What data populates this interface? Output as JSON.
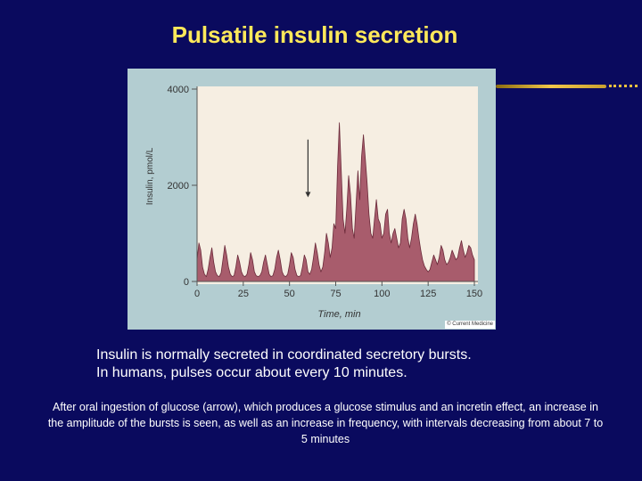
{
  "slide": {
    "title": "Pulsatile insulin secretion",
    "bullets": [
      "Insulin is normally secreted in coordinated secretory bursts.",
      "In humans, pulses occur about every 10 minutes."
    ],
    "note": "After oral ingestion of glucose (arrow), which produces a glucose stimulus and an incretin effect, an increase in the amplitude of the bursts is seen, as well as an increase in frequency, with intervals decreasing from about 7 to 5 minutes",
    "copyright": "© Current Medicine"
  },
  "colors": {
    "background": "#0a0a5e",
    "title": "#ffe95a",
    "plot_area": "#f6eee2",
    "figure_frame": "#b3cdd1",
    "series_fill": "#a85c6c",
    "series_line": "#6b2a3a"
  },
  "chart_data": {
    "type": "area",
    "title": "",
    "xlabel": "Time, min",
    "ylabel": "Insulin, pmol/L",
    "xlim": [
      0,
      150
    ],
    "ylim": [
      0,
      4000
    ],
    "x_ticks": [
      0,
      25,
      50,
      75,
      100,
      125,
      150
    ],
    "y_ticks": [
      0,
      2000,
      4000
    ],
    "grid": false,
    "legend": "none",
    "annotation": {
      "type": "arrow",
      "x": 60,
      "y_from": 2950,
      "y_to": 1750
    },
    "x": [
      0,
      1,
      2,
      3,
      4,
      5,
      6,
      7,
      8,
      9,
      10,
      11,
      12,
      13,
      14,
      15,
      16,
      17,
      18,
      19,
      20,
      21,
      22,
      23,
      24,
      25,
      26,
      27,
      28,
      29,
      30,
      31,
      32,
      33,
      34,
      35,
      36,
      37,
      38,
      39,
      40,
      41,
      42,
      43,
      44,
      45,
      46,
      47,
      48,
      49,
      50,
      51,
      52,
      53,
      54,
      55,
      56,
      57,
      58,
      59,
      60,
      61,
      62,
      63,
      64,
      65,
      66,
      67,
      68,
      69,
      70,
      71,
      72,
      73,
      74,
      75,
      76,
      77,
      78,
      79,
      80,
      81,
      82,
      83,
      84,
      85,
      86,
      87,
      88,
      89,
      90,
      91,
      92,
      93,
      94,
      95,
      96,
      97,
      98,
      99,
      100,
      101,
      102,
      103,
      104,
      105,
      106,
      107,
      108,
      109,
      110,
      111,
      112,
      113,
      114,
      115,
      116,
      117,
      118,
      119,
      120,
      121,
      122,
      123,
      124,
      125,
      126,
      127,
      128,
      129,
      130,
      131,
      132,
      133,
      134,
      135,
      136,
      137,
      138,
      139,
      140,
      141,
      142,
      143,
      144,
      145,
      146,
      147,
      148,
      149,
      150
    ],
    "values": [
      450,
      800,
      650,
      300,
      150,
      100,
      250,
      500,
      700,
      400,
      200,
      120,
      100,
      180,
      450,
      750,
      550,
      300,
      150,
      100,
      120,
      300,
      550,
      400,
      200,
      120,
      100,
      150,
      350,
      600,
      450,
      200,
      120,
      100,
      120,
      200,
      400,
      550,
      350,
      150,
      100,
      120,
      250,
      500,
      650,
      450,
      200,
      120,
      100,
      150,
      350,
      600,
      500,
      250,
      120,
      100,
      120,
      300,
      550,
      450,
      200,
      150,
      250,
      500,
      800,
      600,
      350,
      200,
      300,
      600,
      1000,
      800,
      500,
      700,
      1200,
      1100,
      2400,
      3300,
      2300,
      1300,
      1000,
      1500,
      2200,
      1800,
      1100,
      900,
      1600,
      2300,
      1700,
      2600,
      3050,
      2550,
      2050,
      1400,
      1000,
      900,
      1300,
      1700,
      1300,
      1200,
      900,
      1000,
      1400,
      1500,
      1000,
      800,
      1000,
      1100,
      900,
      700,
      800,
      1300,
      1500,
      1300,
      900,
      700,
      900,
      1200,
      1400,
      1200,
      900,
      650,
      450,
      320,
      250,
      200,
      250,
      400,
      550,
      450,
      350,
      500,
      750,
      650,
      450,
      350,
      400,
      500,
      650,
      550,
      450,
      500,
      700,
      850,
      650,
      500,
      600,
      750,
      700,
      550,
      450
    ]
  }
}
